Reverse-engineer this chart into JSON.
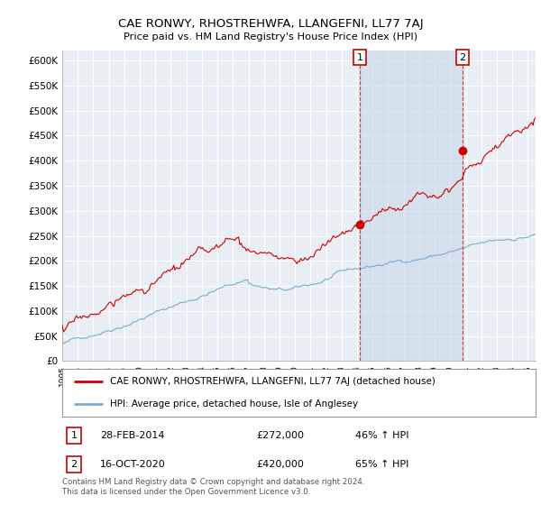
{
  "title": "CAE RONWY, RHOSTREHWFA, LLANGEFNI, LL77 7AJ",
  "subtitle": "Price paid vs. HM Land Registry's House Price Index (HPI)",
  "ylim": [
    0,
    620000
  ],
  "yticks": [
    0,
    50000,
    100000,
    150000,
    200000,
    250000,
    300000,
    350000,
    400000,
    450000,
    500000,
    550000,
    600000
  ],
  "ytick_labels": [
    "£0",
    "£50K",
    "£100K",
    "£150K",
    "£200K",
    "£250K",
    "£300K",
    "£350K",
    "£400K",
    "£450K",
    "£500K",
    "£550K",
    "£600K"
  ],
  "xlim_start": 1995,
  "xlim_end": 2025.5,
  "background_color": "#ffffff",
  "plot_background": "#e8eef4",
  "grid_color": "#ffffff",
  "red_color": "#cc0000",
  "blue_color": "#7aadcf",
  "span_color": "#c8d8e8",
  "marker1_x": 2014.17,
  "marker2_x": 2020.79,
  "marker1_y": 272000,
  "marker2_y": 420000,
  "marker1_label": "28-FEB-2014",
  "marker1_price": "£272,000",
  "marker1_hpi": "46% ↑ HPI",
  "marker2_label": "16-OCT-2020",
  "marker2_price": "£420,000",
  "marker2_hpi": "65% ↑ HPI",
  "legend_line1": "CAE RONWY, RHOSTREHWFA, LLANGEFNI, LL77 7AJ (detached house)",
  "legend_line2": "HPI: Average price, detached house, Isle of Anglesey",
  "footer": "Contains HM Land Registry data © Crown copyright and database right 2024.\nThis data is licensed under the Open Government Licence v3.0."
}
